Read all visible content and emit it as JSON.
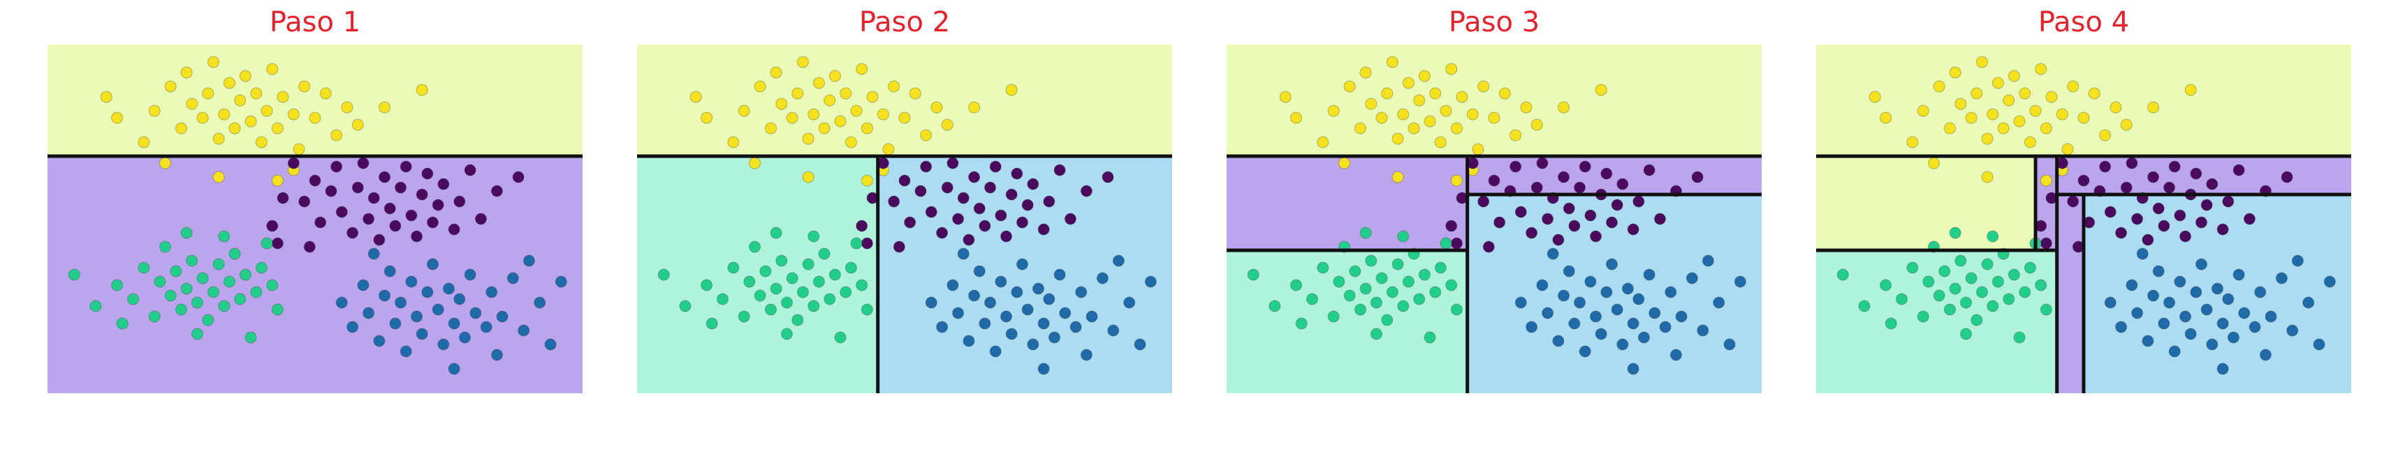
{
  "colors": {
    "region_yellow": "#e9fbb6",
    "region_purple": "#bba6ee",
    "region_green": "#b0f3dc",
    "region_blue": "#abdcf1",
    "point_yellow": "#f5e21d",
    "point_purple": "#4b0a5e",
    "point_green": "#22cf8a",
    "point_blue": "#1f6aa8",
    "boundary": "#111111",
    "title": "#e8202a"
  },
  "chart_data": [
    {
      "type": "scatter",
      "title": "Paso 1",
      "xlim": [
        0,
        10
      ],
      "ylim": [
        0,
        10
      ],
      "regions": [
        {
          "x": [
            0,
            10
          ],
          "y": [
            6.8,
            10
          ],
          "class": "yellow"
        },
        {
          "x": [
            0,
            10
          ],
          "y": [
            0,
            6.8
          ],
          "class": "purple"
        }
      ],
      "splits": [
        {
          "x1": 0,
          "y1": 6.8,
          "x2": 10,
          "y2": 6.8
        }
      ]
    },
    {
      "type": "scatter",
      "title": "Paso 2",
      "xlim": [
        0,
        10
      ],
      "ylim": [
        0,
        10
      ],
      "regions": [
        {
          "x": [
            0,
            10
          ],
          "y": [
            6.8,
            10
          ],
          "class": "yellow"
        },
        {
          "x": [
            0,
            4.5
          ],
          "y": [
            0,
            6.8
          ],
          "class": "green"
        },
        {
          "x": [
            4.5,
            10
          ],
          "y": [
            0,
            6.8
          ],
          "class": "blue"
        }
      ],
      "splits": [
        {
          "x1": 0,
          "y1": 6.8,
          "x2": 10,
          "y2": 6.8
        },
        {
          "x1": 4.5,
          "y1": 0,
          "x2": 4.5,
          "y2": 6.8
        }
      ]
    },
    {
      "type": "scatter",
      "title": "Paso 3",
      "xlim": [
        0,
        10
      ],
      "ylim": [
        0,
        10
      ],
      "regions": [
        {
          "x": [
            0,
            10
          ],
          "y": [
            6.8,
            10
          ],
          "class": "yellow"
        },
        {
          "x": [
            0,
            4.5
          ],
          "y": [
            4.1,
            6.8
          ],
          "class": "purple"
        },
        {
          "x": [
            0,
            4.5
          ],
          "y": [
            0,
            4.1
          ],
          "class": "green"
        },
        {
          "x": [
            4.5,
            10
          ],
          "y": [
            5.7,
            6.8
          ],
          "class": "purple"
        },
        {
          "x": [
            4.5,
            10
          ],
          "y": [
            0,
            5.7
          ],
          "class": "blue"
        }
      ],
      "splits": [
        {
          "x1": 0,
          "y1": 6.8,
          "x2": 10,
          "y2": 6.8
        },
        {
          "x1": 4.5,
          "y1": 0,
          "x2": 4.5,
          "y2": 6.8
        },
        {
          "x1": 0,
          "y1": 4.1,
          "x2": 4.5,
          "y2": 4.1
        },
        {
          "x1": 4.5,
          "y1": 5.7,
          "x2": 10,
          "y2": 5.7
        }
      ]
    },
    {
      "type": "scatter",
      "title": "Paso 4",
      "xlim": [
        0,
        10
      ],
      "ylim": [
        0,
        10
      ],
      "regions": [
        {
          "x": [
            0,
            10
          ],
          "y": [
            6.8,
            10
          ],
          "class": "yellow"
        },
        {
          "x": [
            0,
            4.1
          ],
          "y": [
            4.1,
            6.8
          ],
          "class": "yellow"
        },
        {
          "x": [
            4.1,
            4.5
          ],
          "y": [
            4.1,
            6.8
          ],
          "class": "purple"
        },
        {
          "x": [
            0,
            4.5
          ],
          "y": [
            0,
            4.1
          ],
          "class": "green"
        },
        {
          "x": [
            4.5,
            10
          ],
          "y": [
            5.7,
            6.8
          ],
          "class": "purple"
        },
        {
          "x": [
            4.5,
            5.0
          ],
          "y": [
            0,
            5.7
          ],
          "class": "purple"
        },
        {
          "x": [
            5.0,
            10
          ],
          "y": [
            0,
            5.7
          ],
          "class": "blue"
        }
      ],
      "splits": [
        {
          "x1": 0,
          "y1": 6.8,
          "x2": 10,
          "y2": 6.8
        },
        {
          "x1": 4.5,
          "y1": 0,
          "x2": 4.5,
          "y2": 6.8
        },
        {
          "x1": 0,
          "y1": 4.1,
          "x2": 4.5,
          "y2": 4.1
        },
        {
          "x1": 4.5,
          "y1": 5.7,
          "x2": 10,
          "y2": 5.7
        },
        {
          "x1": 4.1,
          "y1": 4.1,
          "x2": 4.1,
          "y2": 6.8
        },
        {
          "x1": 5.0,
          "y1": 0,
          "x2": 5.0,
          "y2": 5.7
        }
      ]
    }
  ],
  "points": [
    {
      "x": 1.1,
      "y": 8.5,
      "class": "yellow"
    },
    {
      "x": 1.3,
      "y": 7.9,
      "class": "yellow"
    },
    {
      "x": 1.8,
      "y": 7.2,
      "class": "yellow"
    },
    {
      "x": 2.0,
      "y": 8.1,
      "class": "yellow"
    },
    {
      "x": 2.3,
      "y": 8.8,
      "class": "yellow"
    },
    {
      "x": 2.5,
      "y": 7.6,
      "class": "yellow"
    },
    {
      "x": 2.6,
      "y": 9.2,
      "class": "yellow"
    },
    {
      "x": 2.7,
      "y": 8.3,
      "class": "yellow"
    },
    {
      "x": 2.9,
      "y": 7.9,
      "class": "yellow"
    },
    {
      "x": 3.0,
      "y": 8.6,
      "class": "yellow"
    },
    {
      "x": 3.1,
      "y": 9.5,
      "class": "yellow"
    },
    {
      "x": 3.2,
      "y": 7.3,
      "class": "yellow"
    },
    {
      "x": 3.3,
      "y": 8.0,
      "class": "yellow"
    },
    {
      "x": 3.4,
      "y": 8.9,
      "class": "yellow"
    },
    {
      "x": 3.5,
      "y": 7.6,
      "class": "yellow"
    },
    {
      "x": 3.6,
      "y": 8.4,
      "class": "yellow"
    },
    {
      "x": 3.7,
      "y": 9.1,
      "class": "yellow"
    },
    {
      "x": 3.8,
      "y": 7.8,
      "class": "yellow"
    },
    {
      "x": 3.9,
      "y": 8.6,
      "class": "yellow"
    },
    {
      "x": 4.0,
      "y": 7.2,
      "class": "yellow"
    },
    {
      "x": 4.1,
      "y": 8.1,
      "class": "yellow"
    },
    {
      "x": 4.2,
      "y": 9.3,
      "class": "yellow"
    },
    {
      "x": 4.3,
      "y": 7.6,
      "class": "yellow"
    },
    {
      "x": 4.4,
      "y": 8.5,
      "class": "yellow"
    },
    {
      "x": 4.6,
      "y": 8.0,
      "class": "yellow"
    },
    {
      "x": 4.7,
      "y": 7.0,
      "class": "yellow"
    },
    {
      "x": 4.8,
      "y": 8.8,
      "class": "yellow"
    },
    {
      "x": 5.0,
      "y": 7.9,
      "class": "yellow"
    },
    {
      "x": 5.2,
      "y": 8.6,
      "class": "yellow"
    },
    {
      "x": 5.4,
      "y": 7.4,
      "class": "yellow"
    },
    {
      "x": 5.6,
      "y": 8.2,
      "class": "yellow"
    },
    {
      "x": 5.8,
      "y": 7.7,
      "class": "yellow"
    },
    {
      "x": 6.3,
      "y": 8.2,
      "class": "yellow"
    },
    {
      "x": 7.0,
      "y": 8.7,
      "class": "yellow"
    },
    {
      "x": 2.2,
      "y": 6.6,
      "class": "yellow"
    },
    {
      "x": 3.2,
      "y": 6.2,
      "class": "yellow"
    },
    {
      "x": 4.3,
      "y": 6.1,
      "class": "yellow"
    },
    {
      "x": 4.6,
      "y": 6.4,
      "class": "yellow"
    },
    {
      "x": 4.6,
      "y": 6.6,
      "class": "purple"
    },
    {
      "x": 4.8,
      "y": 5.5,
      "class": "purple"
    },
    {
      "x": 5.0,
      "y": 6.1,
      "class": "purple"
    },
    {
      "x": 5.1,
      "y": 4.9,
      "class": "purple"
    },
    {
      "x": 5.3,
      "y": 5.8,
      "class": "purple"
    },
    {
      "x": 5.4,
      "y": 6.5,
      "class": "purple"
    },
    {
      "x": 5.5,
      "y": 5.2,
      "class": "purple"
    },
    {
      "x": 5.7,
      "y": 4.6,
      "class": "purple"
    },
    {
      "x": 5.8,
      "y": 5.9,
      "class": "purple"
    },
    {
      "x": 5.9,
      "y": 6.6,
      "class": "purple"
    },
    {
      "x": 6.0,
      "y": 5.0,
      "class": "purple"
    },
    {
      "x": 6.1,
      "y": 5.6,
      "class": "purple"
    },
    {
      "x": 6.2,
      "y": 4.4,
      "class": "purple"
    },
    {
      "x": 6.3,
      "y": 6.2,
      "class": "purple"
    },
    {
      "x": 6.4,
      "y": 5.3,
      "class": "purple"
    },
    {
      "x": 6.5,
      "y": 4.8,
      "class": "purple"
    },
    {
      "x": 6.6,
      "y": 5.9,
      "class": "purple"
    },
    {
      "x": 6.7,
      "y": 6.5,
      "class": "purple"
    },
    {
      "x": 6.8,
      "y": 5.1,
      "class": "purple"
    },
    {
      "x": 6.9,
      "y": 4.5,
      "class": "purple"
    },
    {
      "x": 7.0,
      "y": 5.7,
      "class": "purple"
    },
    {
      "x": 7.1,
      "y": 6.3,
      "class": "purple"
    },
    {
      "x": 7.2,
      "y": 4.9,
      "class": "purple"
    },
    {
      "x": 7.3,
      "y": 5.4,
      "class": "purple"
    },
    {
      "x": 7.4,
      "y": 6.0,
      "class": "purple"
    },
    {
      "x": 7.6,
      "y": 4.7,
      "class": "purple"
    },
    {
      "x": 7.7,
      "y": 5.5,
      "class": "purple"
    },
    {
      "x": 7.9,
      "y": 6.4,
      "class": "purple"
    },
    {
      "x": 8.1,
      "y": 5.0,
      "class": "purple"
    },
    {
      "x": 8.4,
      "y": 5.8,
      "class": "purple"
    },
    {
      "x": 8.8,
      "y": 6.2,
      "class": "purple"
    },
    {
      "x": 4.2,
      "y": 4.8,
      "class": "purple"
    },
    {
      "x": 4.4,
      "y": 5.6,
      "class": "purple"
    },
    {
      "x": 4.3,
      "y": 4.3,
      "class": "purple"
    },
    {
      "x": 4.9,
      "y": 4.2,
      "class": "purple"
    },
    {
      "x": 0.5,
      "y": 3.4,
      "class": "green"
    },
    {
      "x": 0.9,
      "y": 2.5,
      "class": "green"
    },
    {
      "x": 1.3,
      "y": 3.1,
      "class": "green"
    },
    {
      "x": 1.6,
      "y": 2.7,
      "class": "green"
    },
    {
      "x": 1.8,
      "y": 3.6,
      "class": "green"
    },
    {
      "x": 2.0,
      "y": 2.2,
      "class": "green"
    },
    {
      "x": 2.1,
      "y": 3.2,
      "class": "green"
    },
    {
      "x": 2.2,
      "y": 4.2,
      "class": "green"
    },
    {
      "x": 2.3,
      "y": 2.8,
      "class": "green"
    },
    {
      "x": 2.4,
      "y": 3.5,
      "class": "green"
    },
    {
      "x": 2.5,
      "y": 2.4,
      "class": "green"
    },
    {
      "x": 2.6,
      "y": 3.0,
      "class": "green"
    },
    {
      "x": 2.7,
      "y": 3.8,
      "class": "green"
    },
    {
      "x": 2.8,
      "y": 2.6,
      "class": "green"
    },
    {
      "x": 2.9,
      "y": 3.3,
      "class": "green"
    },
    {
      "x": 3.0,
      "y": 2.1,
      "class": "green"
    },
    {
      "x": 3.1,
      "y": 2.9,
      "class": "green"
    },
    {
      "x": 3.2,
      "y": 3.7,
      "class": "green"
    },
    {
      "x": 3.3,
      "y": 2.5,
      "class": "green"
    },
    {
      "x": 3.4,
      "y": 3.2,
      "class": "green"
    },
    {
      "x": 3.5,
      "y": 4.0,
      "class": "green"
    },
    {
      "x": 3.6,
      "y": 2.7,
      "class": "green"
    },
    {
      "x": 3.7,
      "y": 3.4,
      "class": "green"
    },
    {
      "x": 3.9,
      "y": 2.9,
      "class": "green"
    },
    {
      "x": 4.0,
      "y": 3.6,
      "class": "green"
    },
    {
      "x": 4.2,
      "y": 3.1,
      "class": "green"
    },
    {
      "x": 4.3,
      "y": 2.4,
      "class": "green"
    },
    {
      "x": 2.6,
      "y": 4.6,
      "class": "green"
    },
    {
      "x": 3.3,
      "y": 4.5,
      "class": "green"
    },
    {
      "x": 3.8,
      "y": 1.6,
      "class": "green"
    },
    {
      "x": 2.8,
      "y": 1.7,
      "class": "green"
    },
    {
      "x": 1.4,
      "y": 2.0,
      "class": "green"
    },
    {
      "x": 4.1,
      "y": 4.3,
      "class": "green"
    },
    {
      "x": 5.5,
      "y": 2.6,
      "class": "blue"
    },
    {
      "x": 5.7,
      "y": 1.9,
      "class": "blue"
    },
    {
      "x": 5.9,
      "y": 3.1,
      "class": "blue"
    },
    {
      "x": 6.0,
      "y": 2.3,
      "class": "blue"
    },
    {
      "x": 6.2,
      "y": 1.5,
      "class": "blue"
    },
    {
      "x": 6.3,
      "y": 2.8,
      "class": "blue"
    },
    {
      "x": 6.4,
      "y": 3.5,
      "class": "blue"
    },
    {
      "x": 6.5,
      "y": 2.0,
      "class": "blue"
    },
    {
      "x": 6.6,
      "y": 2.6,
      "class": "blue"
    },
    {
      "x": 6.7,
      "y": 1.2,
      "class": "blue"
    },
    {
      "x": 6.8,
      "y": 3.2,
      "class": "blue"
    },
    {
      "x": 6.9,
      "y": 2.2,
      "class": "blue"
    },
    {
      "x": 7.0,
      "y": 1.7,
      "class": "blue"
    },
    {
      "x": 7.1,
      "y": 2.9,
      "class": "blue"
    },
    {
      "x": 7.2,
      "y": 3.7,
      "class": "blue"
    },
    {
      "x": 7.3,
      "y": 2.4,
      "class": "blue"
    },
    {
      "x": 7.4,
      "y": 1.4,
      "class": "blue"
    },
    {
      "x": 7.5,
      "y": 3.0,
      "class": "blue"
    },
    {
      "x": 7.6,
      "y": 2.0,
      "class": "blue"
    },
    {
      "x": 7.7,
      "y": 2.7,
      "class": "blue"
    },
    {
      "x": 7.8,
      "y": 1.6,
      "class": "blue"
    },
    {
      "x": 7.9,
      "y": 3.4,
      "class": "blue"
    },
    {
      "x": 8.0,
      "y": 2.3,
      "class": "blue"
    },
    {
      "x": 8.2,
      "y": 1.9,
      "class": "blue"
    },
    {
      "x": 8.3,
      "y": 2.9,
      "class": "blue"
    },
    {
      "x": 8.5,
      "y": 2.2,
      "class": "blue"
    },
    {
      "x": 8.7,
      "y": 3.3,
      "class": "blue"
    },
    {
      "x": 8.9,
      "y": 1.8,
      "class": "blue"
    },
    {
      "x": 9.2,
      "y": 2.6,
      "class": "blue"
    },
    {
      "x": 9.4,
      "y": 1.4,
      "class": "blue"
    },
    {
      "x": 9.6,
      "y": 3.2,
      "class": "blue"
    },
    {
      "x": 7.6,
      "y": 0.7,
      "class": "blue"
    },
    {
      "x": 8.4,
      "y": 1.1,
      "class": "blue"
    },
    {
      "x": 6.1,
      "y": 4.0,
      "class": "blue"
    },
    {
      "x": 9.0,
      "y": 3.8,
      "class": "blue"
    }
  ]
}
